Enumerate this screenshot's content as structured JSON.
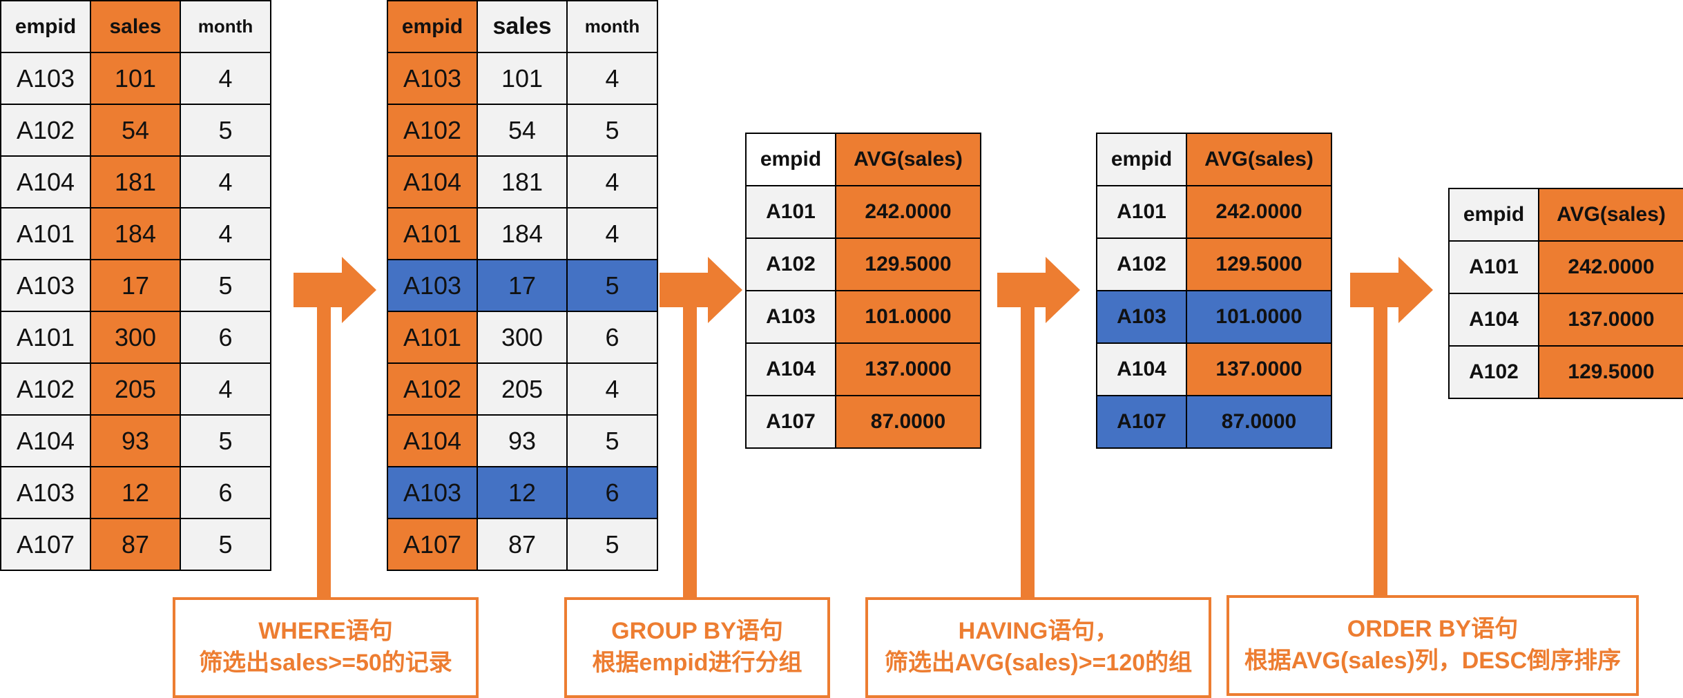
{
  "colors": {
    "orange": "#ed7d31",
    "blue": "#4472c4",
    "gray": "#f2f2f2"
  },
  "table1": {
    "headers": [
      "empid",
      "sales",
      "month"
    ],
    "rows": [
      [
        "A103",
        "101",
        "4"
      ],
      [
        "A102",
        "54",
        "5"
      ],
      [
        "A104",
        "181",
        "4"
      ],
      [
        "A101",
        "184",
        "4"
      ],
      [
        "A103",
        "17",
        "5"
      ],
      [
        "A101",
        "300",
        "6"
      ],
      [
        "A102",
        "205",
        "4"
      ],
      [
        "A104",
        "93",
        "5"
      ],
      [
        "A103",
        "12",
        "6"
      ],
      [
        "A107",
        "87",
        "5"
      ]
    ]
  },
  "table2": {
    "headers": [
      "empid",
      "sales",
      "month"
    ],
    "rows": [
      [
        "A103",
        "101",
        "4"
      ],
      [
        "A102",
        "54",
        "5"
      ],
      [
        "A104",
        "181",
        "4"
      ],
      [
        "A101",
        "184",
        "4"
      ],
      [
        "A103",
        "17",
        "5"
      ],
      [
        "A101",
        "300",
        "6"
      ],
      [
        "A102",
        "205",
        "4"
      ],
      [
        "A104",
        "93",
        "5"
      ],
      [
        "A103",
        "12",
        "6"
      ],
      [
        "A107",
        "87",
        "5"
      ]
    ]
  },
  "table3": {
    "headers": [
      "empid",
      "AVG(sales)"
    ],
    "rows": [
      [
        "A101",
        "242.0000"
      ],
      [
        "A102",
        "129.5000"
      ],
      [
        "A103",
        "101.0000"
      ],
      [
        "A104",
        "137.0000"
      ],
      [
        "A107",
        "87.0000"
      ]
    ]
  },
  "table4": {
    "headers": [
      "empid",
      "AVG(sales)"
    ],
    "rows": [
      [
        "A101",
        "242.0000"
      ],
      [
        "A102",
        "129.5000"
      ],
      [
        "A103",
        "101.0000"
      ],
      [
        "A104",
        "137.0000"
      ],
      [
        "A107",
        "87.0000"
      ]
    ]
  },
  "table5": {
    "headers": [
      "empid",
      "AVG(sales)"
    ],
    "rows": [
      [
        "A101",
        "242.0000"
      ],
      [
        "A104",
        "137.0000"
      ],
      [
        "A102",
        "129.5000"
      ]
    ]
  },
  "steps": {
    "where": {
      "line1": "WHERE语句",
      "line2": "筛选出sales>=50的记录"
    },
    "group_by": {
      "line1": "GROUP BY语句",
      "line2": "根据empid进行分组"
    },
    "having": {
      "line1": "HAVING语句，",
      "line2": "筛选出AVG(sales)>=120的组"
    },
    "order_by": {
      "line1": "ORDER BY语句",
      "line2": "根据AVG(sales)列，DESC倒序排序"
    }
  }
}
